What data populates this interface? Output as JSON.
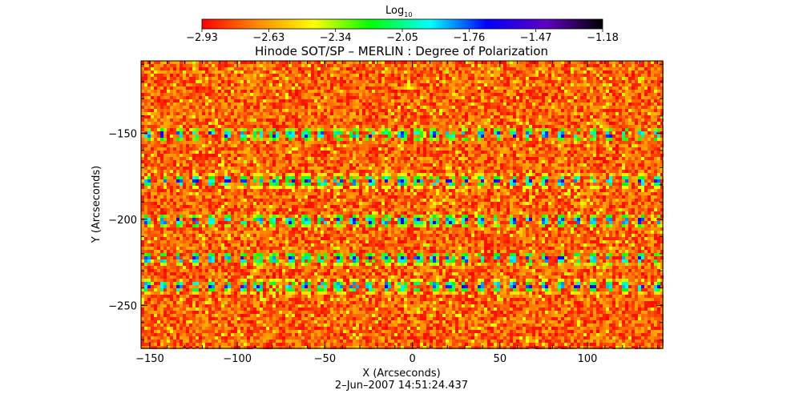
{
  "chart_data": {
    "type": "heatmap",
    "title": "Hinode SOT/SP – MERLIN : Degree of Polarization",
    "xlabel": "X (Arcseconds)",
    "ylabel": "Y (Arcseconds)",
    "timestamp": "2–Jun–2007 14:51:24.437",
    "xlim": [
      -155,
      143
    ],
    "ylim": [
      -275,
      -108
    ],
    "x_ticks": [
      -150,
      -100,
      -50,
      0,
      50,
      100
    ],
    "x_tick_labels": [
      "−150",
      "−100",
      "−50",
      "0",
      "50",
      "100"
    ],
    "y_ticks": [
      -150,
      -200,
      -250
    ],
    "y_tick_labels": [
      "−150",
      "−200",
      "−250"
    ],
    "colorbar": {
      "label": "Log",
      "label_subscript": "10",
      "range": [
        -2.93,
        -1.18
      ],
      "ticks": [
        "−2.93",
        "−2.63",
        "−2.34",
        "−2.05",
        "−1.76",
        "−1.47",
        "−1.18"
      ],
      "colors": [
        "#ff0000",
        "#ff8c00",
        "#ffff00",
        "#00ff00",
        "#00ffff",
        "#0000ff",
        "#6000c0",
        "#000000"
      ]
    },
    "dominant_value_range": [
      -2.93,
      -2.6
    ],
    "enhanced_rows_y": [
      -150,
      -177,
      -200,
      -222,
      -238
    ],
    "enhanced_rows_peak_value": -1.5
  }
}
